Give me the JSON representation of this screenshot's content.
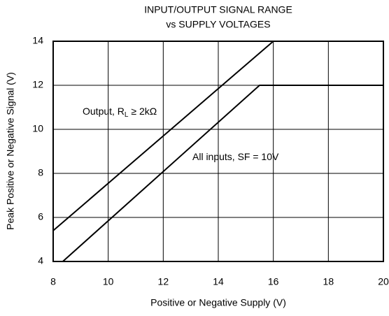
{
  "chart_data": {
    "type": "line",
    "title": [
      "INPUT/OUTPUT SIGNAL RANGE",
      "vs SUPPLY VOLTAGES"
    ],
    "x_label": "Positive or Negative Supply (V)",
    "y_label": "Peak Positive or Negative Signal (V)",
    "xlim": [
      8,
      20
    ],
    "xticks": [
      8,
      10,
      12,
      14,
      16,
      18,
      20
    ],
    "ylim": [
      4,
      14
    ],
    "yticks": [
      4,
      6,
      8,
      10,
      12,
      14
    ],
    "grid": true,
    "color": "#000000",
    "series": [
      {
        "name": [
          "Output, R",
          "L",
          " ≥ 2kΩ"
        ],
        "x": [
          8,
          16
        ],
        "values": [
          5.4,
          14
        ]
      },
      {
        "name": [
          "All inputs, SF = 10V"
        ],
        "x": [
          8.35,
          15.5,
          20
        ],
        "values": [
          4,
          12,
          12
        ]
      }
    ]
  }
}
